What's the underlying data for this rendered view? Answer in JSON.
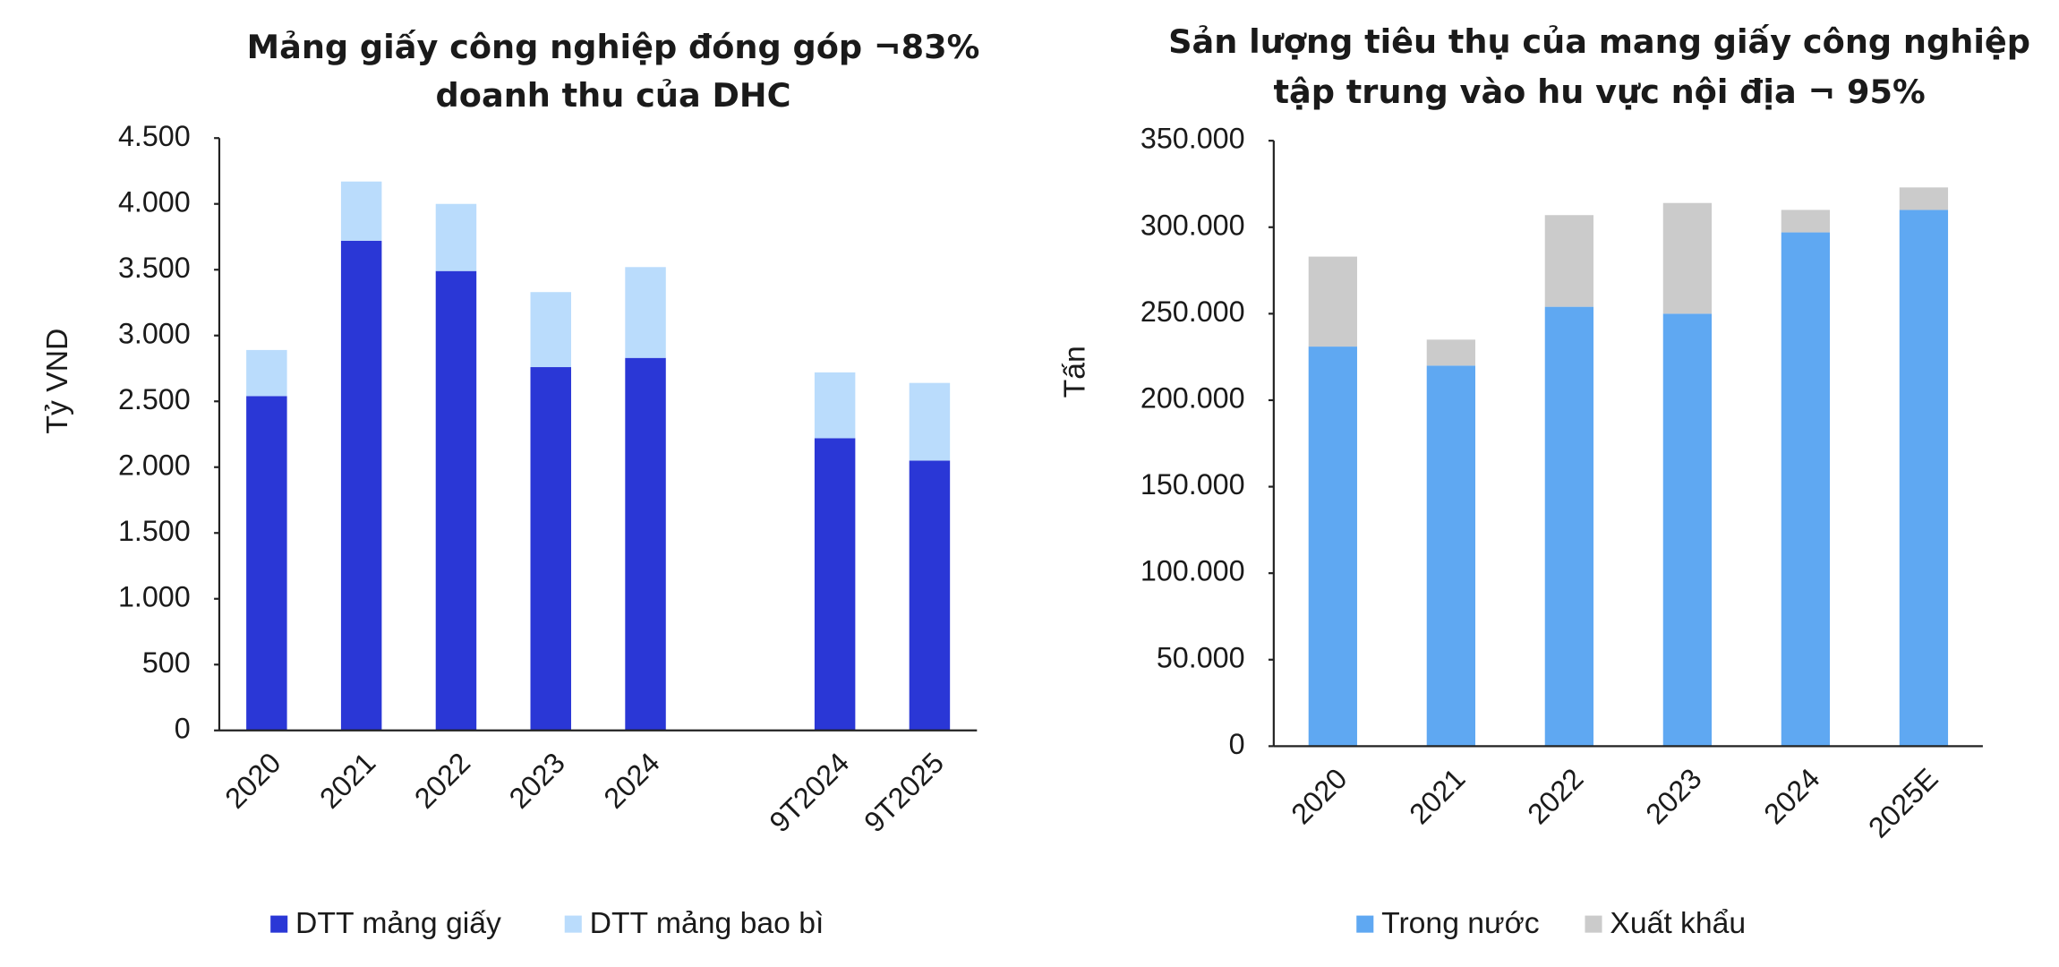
{
  "chart_data": [
    {
      "type": "bar",
      "stacked": true,
      "title": [
        "Mảng giấy công nghiệp đóng góp ¬83%",
        "doanh thu của DHC"
      ],
      "y_label": "Tỷ VND",
      "categories": [
        "2020",
        "2021",
        "2022",
        "2023",
        "2024",
        null,
        "9T2024",
        "9T2025"
      ],
      "series": [
        {
          "name": "DTT mảng giấy",
          "color": "#2a37d6",
          "values": [
            2540,
            3720,
            3490,
            2760,
            2830,
            null,
            2220,
            2050
          ]
        },
        {
          "name": "DTT mảng bao bì",
          "color": "#badcfc",
          "values": [
            350,
            450,
            510,
            570,
            690,
            null,
            500,
            590
          ]
        }
      ],
      "ylim": [
        0,
        4500
      ],
      "yticks": [
        0,
        500,
        {
          "value": 1000,
          "label": "1.000"
        },
        {
          "value": 1500,
          "label": "1.500"
        },
        {
          "value": 2000,
          "label": "2.000"
        },
        {
          "value": 2500,
          "label": "2.500"
        },
        {
          "value": 3000,
          "label": "3.000"
        },
        {
          "value": 3500,
          "label": "3.500"
        },
        {
          "value": 4000,
          "label": "4.000"
        },
        {
          "value": 4500,
          "label": "4.500"
        }
      ],
      "grid": false,
      "legend": "bottom"
    },
    {
      "type": "bar",
      "stacked": true,
      "title": [
        "Sản lượng tiêu thụ của mang giấy công nghiệp",
        "tập trung vào hu vực nội địa ¬ 95%"
      ],
      "y_label": "Tấn",
      "categories": [
        "2020",
        "2021",
        "2022",
        "2023",
        "2024",
        "2025E"
      ],
      "series": [
        {
          "name": "Trong nước",
          "color": "#5fa8f2",
          "values": [
            231000,
            220000,
            254000,
            250000,
            297000,
            310000
          ]
        },
        {
          "name": "Xuất khẩu",
          "color": "#cbcbcb",
          "values": [
            52000,
            15000,
            53000,
            64000,
            13000,
            13000
          ]
        }
      ],
      "ylim": [
        0,
        350000
      ],
      "yticks": [
        0,
        {
          "value": 50000,
          "label": "50.000"
        },
        {
          "value": 100000,
          "label": "100.000"
        },
        {
          "value": 150000,
          "label": "150.000"
        },
        {
          "value": 200000,
          "label": "200.000"
        },
        {
          "value": 250000,
          "label": "250.000"
        },
        {
          "value": 300000,
          "label": "300.000"
        },
        {
          "value": 350000,
          "label": "350.000"
        }
      ],
      "grid": false,
      "legend": "bottom"
    }
  ]
}
